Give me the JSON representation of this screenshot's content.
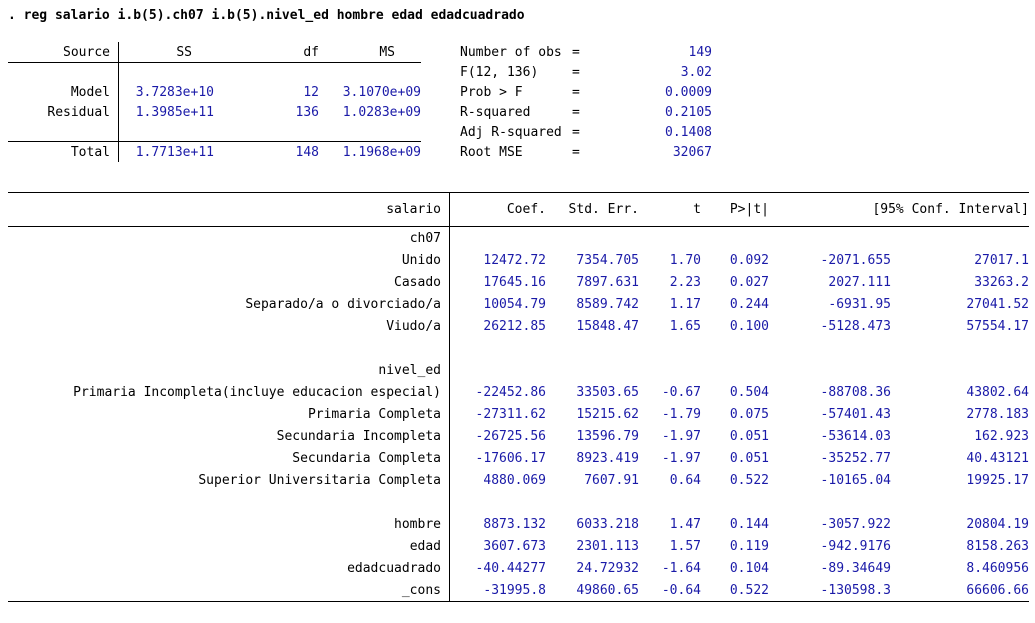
{
  "command": ". reg salario i.b(5).ch07 i.b(5).nivel_ed hombre edad edadcuadrado",
  "colors": {
    "result_blue": "#1a1aa8",
    "text_black": "#000000"
  },
  "anova": {
    "col_headers": {
      "source": "Source",
      "ss": "SS",
      "df": "df",
      "ms": "MS"
    },
    "rows": [
      {
        "source": "Model",
        "ss": "3.7283e+10",
        "df": "12",
        "ms": "3.1070e+09"
      },
      {
        "source": "Residual",
        "ss": "1.3985e+11",
        "df": "136",
        "ms": "1.0283e+09"
      },
      {
        "source": "Total",
        "ss": "1.7713e+11",
        "df": "148",
        "ms": "1.1968e+09"
      }
    ]
  },
  "fit_stats": [
    {
      "label": "Number of obs",
      "eq": "=",
      "value": "149"
    },
    {
      "label": "F(12, 136)",
      "eq": "=",
      "value": "3.02"
    },
    {
      "label": "Prob > F",
      "eq": "=",
      "value": "0.0009"
    },
    {
      "label": "R-squared",
      "eq": "=",
      "value": "0.2105"
    },
    {
      "label": "Adj R-squared",
      "eq": "=",
      "value": "0.1408"
    },
    {
      "label": "Root MSE",
      "eq": "=",
      "value": "32067"
    }
  ],
  "coef_table": {
    "headers": {
      "depvar": "salario",
      "coef": "Coef.",
      "std_err": "Std. Err.",
      "t": "t",
      "p": "P>|t|",
      "ci": "[95% Conf. Interval]"
    },
    "rows": [
      {
        "type": "group",
        "label": "ch07"
      },
      {
        "type": "data",
        "label": "Unido",
        "coef": "12472.72",
        "std_err": "7354.705",
        "t": "1.70",
        "p": "0.092",
        "ci_low": "-2071.655",
        "ci_high": "27017.1"
      },
      {
        "type": "data",
        "label": "Casado",
        "coef": "17645.16",
        "std_err": "7897.631",
        "t": "2.23",
        "p": "0.027",
        "ci_low": "2027.111",
        "ci_high": "33263.2"
      },
      {
        "type": "data",
        "label": "Separado/a o divorciado/a",
        "coef": "10054.79",
        "std_err": "8589.742",
        "t": "1.17",
        "p": "0.244",
        "ci_low": "-6931.95",
        "ci_high": "27041.52"
      },
      {
        "type": "data",
        "label": "Viudo/a",
        "coef": "26212.85",
        "std_err": "15848.47",
        "t": "1.65",
        "p": "0.100",
        "ci_low": "-5128.473",
        "ci_high": "57554.17"
      },
      {
        "type": "blank",
        "label": ""
      },
      {
        "type": "group",
        "label": "nivel_ed"
      },
      {
        "type": "data",
        "label": "Primaria Incompleta(incluye educacion especial)",
        "coef": "-22452.86",
        "std_err": "33503.65",
        "t": "-0.67",
        "p": "0.504",
        "ci_low": "-88708.36",
        "ci_high": "43802.64"
      },
      {
        "type": "data",
        "label": "Primaria Completa",
        "coef": "-27311.62",
        "std_err": "15215.62",
        "t": "-1.79",
        "p": "0.075",
        "ci_low": "-57401.43",
        "ci_high": "2778.183"
      },
      {
        "type": "data",
        "label": "Secundaria Incompleta",
        "coef": "-26725.56",
        "std_err": "13596.79",
        "t": "-1.97",
        "p": "0.051",
        "ci_low": "-53614.03",
        "ci_high": "162.923"
      },
      {
        "type": "data",
        "label": "Secundaria Completa",
        "coef": "-17606.17",
        "std_err": "8923.419",
        "t": "-1.97",
        "p": "0.051",
        "ci_low": "-35252.77",
        "ci_high": "40.43121"
      },
      {
        "type": "data",
        "label": "Superior Universitaria Completa",
        "coef": "4880.069",
        "std_err": "7607.91",
        "t": "0.64",
        "p": "0.522",
        "ci_low": "-10165.04",
        "ci_high": "19925.17"
      },
      {
        "type": "blank",
        "label": ""
      },
      {
        "type": "data",
        "label": "hombre",
        "coef": "8873.132",
        "std_err": "6033.218",
        "t": "1.47",
        "p": "0.144",
        "ci_low": "-3057.922",
        "ci_high": "20804.19"
      },
      {
        "type": "data",
        "label": "edad",
        "coef": "3607.673",
        "std_err": "2301.113",
        "t": "1.57",
        "p": "0.119",
        "ci_low": "-942.9176",
        "ci_high": "8158.263"
      },
      {
        "type": "data",
        "label": "edadcuadrado",
        "coef": "-40.44277",
        "std_err": "24.72932",
        "t": "-1.64",
        "p": "0.104",
        "ci_low": "-89.34649",
        "ci_high": "8.460956"
      },
      {
        "type": "data",
        "label": "_cons",
        "coef": "-31995.8",
        "std_err": "49860.65",
        "t": "-0.64",
        "p": "0.522",
        "ci_low": "-130598.3",
        "ci_high": "66606.66"
      }
    ]
  }
}
